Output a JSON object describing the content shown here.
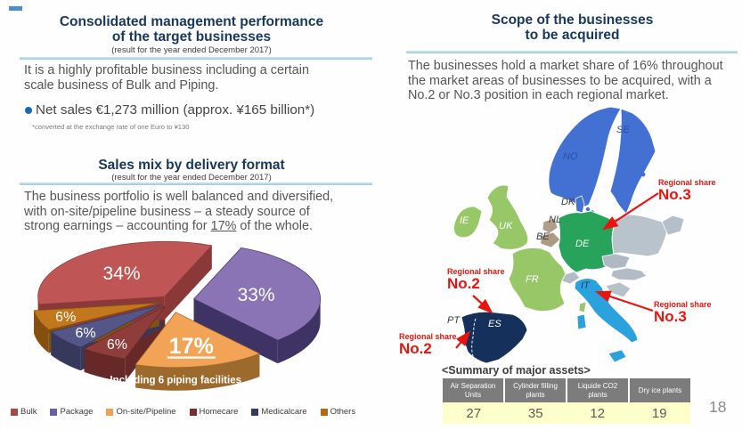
{
  "slide": {
    "page_number": "18"
  },
  "left": {
    "section1": {
      "title_line1": "Consolidated management performance",
      "title_line2": "of the target businesses",
      "subtitle": "(result for the year ended December 2017)",
      "body_line1": "It is a highly profitable business including a certain",
      "body_line2": "scale business of Bulk and Piping.",
      "bullet": "Net sales €1,273 million  (approx. ¥165 billion*)",
      "footnote": "*converted at the exchange rate of one Euro to ¥130"
    },
    "section2": {
      "title": "Sales mix by delivery format",
      "subtitle": "(result for the year ended December 2017)",
      "body_line1": "The business portfolio is well balanced and diversified,",
      "body_line2": "with on-site/pipeline business – a steady source of",
      "body_line3_pre": "strong earnings – accounting for ",
      "body_line3_underlined": "17%",
      "body_line3_post": " of the whole."
    }
  },
  "right": {
    "title_line1": "Scope of the businesses",
    "title_line2": "to be acquired",
    "body_line1": "The businesses hold a market share of 16% throughout",
    "body_line2": "the market areas of businesses to be acquired, with a",
    "body_line3": "No.2 or No.3 position in each regional market."
  },
  "chart_data": {
    "type": "pie",
    "title": "Sales mix by delivery format",
    "unit": "%",
    "categories": [
      "Bulk",
      "Package",
      "On-site/Pipeline",
      "Homecare",
      "Medicalcare",
      "Others"
    ],
    "values": [
      34,
      33,
      17,
      6,
      6,
      6
    ],
    "annotation": "Including 6 piping facilities",
    "start_angle_deg": 22,
    "slices": [
      {
        "name": "Package",
        "value": 33,
        "top": "#8a74b6",
        "side": "#3f3365",
        "explode": 26,
        "label_r": 0.5,
        "font": 21
      },
      {
        "name": "On-site/Pipeline",
        "value": 17,
        "top": "#f2a355",
        "side": "#9c6a2d",
        "explode": 26,
        "label_r": 0.62,
        "font": 25,
        "underline": true,
        "band": true
      },
      {
        "name": "Homecare",
        "value": 6,
        "top": "#8e3d3b",
        "side": "#662927",
        "explode": 14,
        "label_r": 0.78,
        "font": 16
      },
      {
        "name": "Medicalcare",
        "value": 6,
        "top": "#545687",
        "side": "#36395c",
        "explode": 14,
        "label_r": 0.78,
        "font": 16
      },
      {
        "name": "Others",
        "value": 6,
        "top": "#c1771c",
        "side": "#85500f",
        "explode": 14,
        "label_r": 0.78,
        "font": 16
      },
      {
        "name": "Bulk",
        "value": 34,
        "top": "#bf5655",
        "side": "#8a3938",
        "explode": 12,
        "label_r": 0.55,
        "font": 21
      }
    ],
    "legend": [
      {
        "label": "Bulk",
        "color": "#a34a48"
      },
      {
        "label": "Package",
        "color": "#6b5f9e"
      },
      {
        "label": "On-site/Pipeline",
        "color": "#f0a150"
      },
      {
        "label": "Homecare",
        "color": "#7c2d2a"
      },
      {
        "label": "Medicalcare",
        "color": "#333a5e"
      },
      {
        "label": "Others",
        "color": "#b06a10"
      }
    ]
  },
  "map": {
    "labels": {
      "se": "SE",
      "no": "NO",
      "dk": "DK",
      "ie": "IE",
      "uk": "UK",
      "nl": "NL",
      "be": "BE",
      "de": "DE",
      "fr": "FR",
      "pt": "PT",
      "es": "ES",
      "it": "IT"
    },
    "annotations": {
      "de": {
        "title": "Regional share",
        "rank": "No.3"
      },
      "es": {
        "title": "Regional share",
        "rank": "No.2"
      },
      "it": {
        "title": "Regional share",
        "rank": "No.3"
      },
      "pt": {
        "title": "Regional share",
        "rank": "No.2"
      }
    },
    "colors": {
      "nordics": "#4371d3",
      "uk_ie_fr": "#98c767",
      "de": "#27a35b",
      "benelux": "#b0a089",
      "east_gray": "#b4bfc9",
      "es": "#16305c",
      "it": "#2ba2dd"
    }
  },
  "summary": {
    "heading": "<Summary of major assets>",
    "columns": [
      {
        "label": "Air Separation Units",
        "value": "27"
      },
      {
        "label": "Cylinder filling plants",
        "value": "35"
      },
      {
        "label": "Liquide CO2 plants",
        "value": "12"
      },
      {
        "label": "Dry ice plants",
        "value": "19"
      }
    ]
  }
}
